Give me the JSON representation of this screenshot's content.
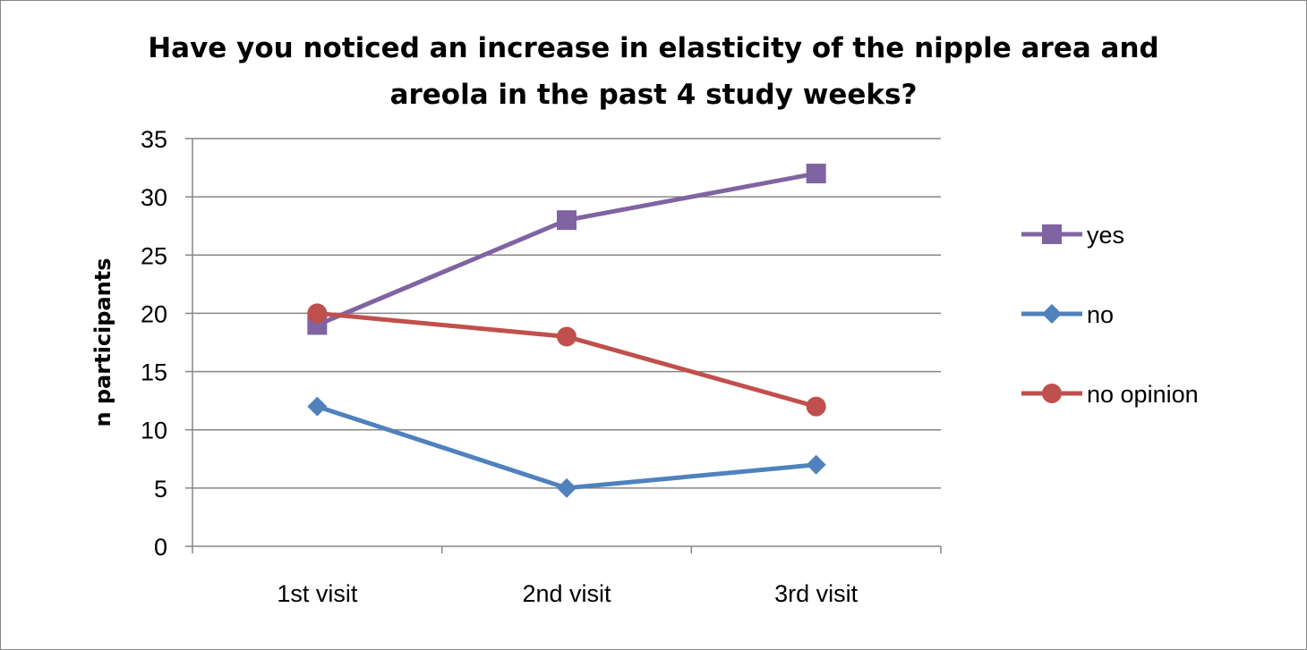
{
  "chart_data": {
    "type": "line",
    "title_lines": [
      "Have you noticed an increase in elasticity of the nipple area and",
      "areola in the past 4 study weeks?"
    ],
    "ylabel": "n participants",
    "xlabel": "",
    "categories": [
      "1st visit",
      "2nd visit",
      "3rd visit"
    ],
    "ylim": [
      0,
      35
    ],
    "yticks": [
      0,
      5,
      10,
      15,
      20,
      25,
      30,
      35
    ],
    "grid": true,
    "legend_position": "right",
    "series": [
      {
        "name": "yes",
        "values": [
          19,
          28,
          32
        ],
        "color": "#8064A2",
        "marker": "square"
      },
      {
        "name": "no",
        "values": [
          12,
          5,
          7
        ],
        "color": "#4F81BD",
        "marker": "diamond"
      },
      {
        "name": "no opinion",
        "values": [
          20,
          18,
          12
        ],
        "color": "#C0504D",
        "marker": "circle"
      }
    ]
  }
}
